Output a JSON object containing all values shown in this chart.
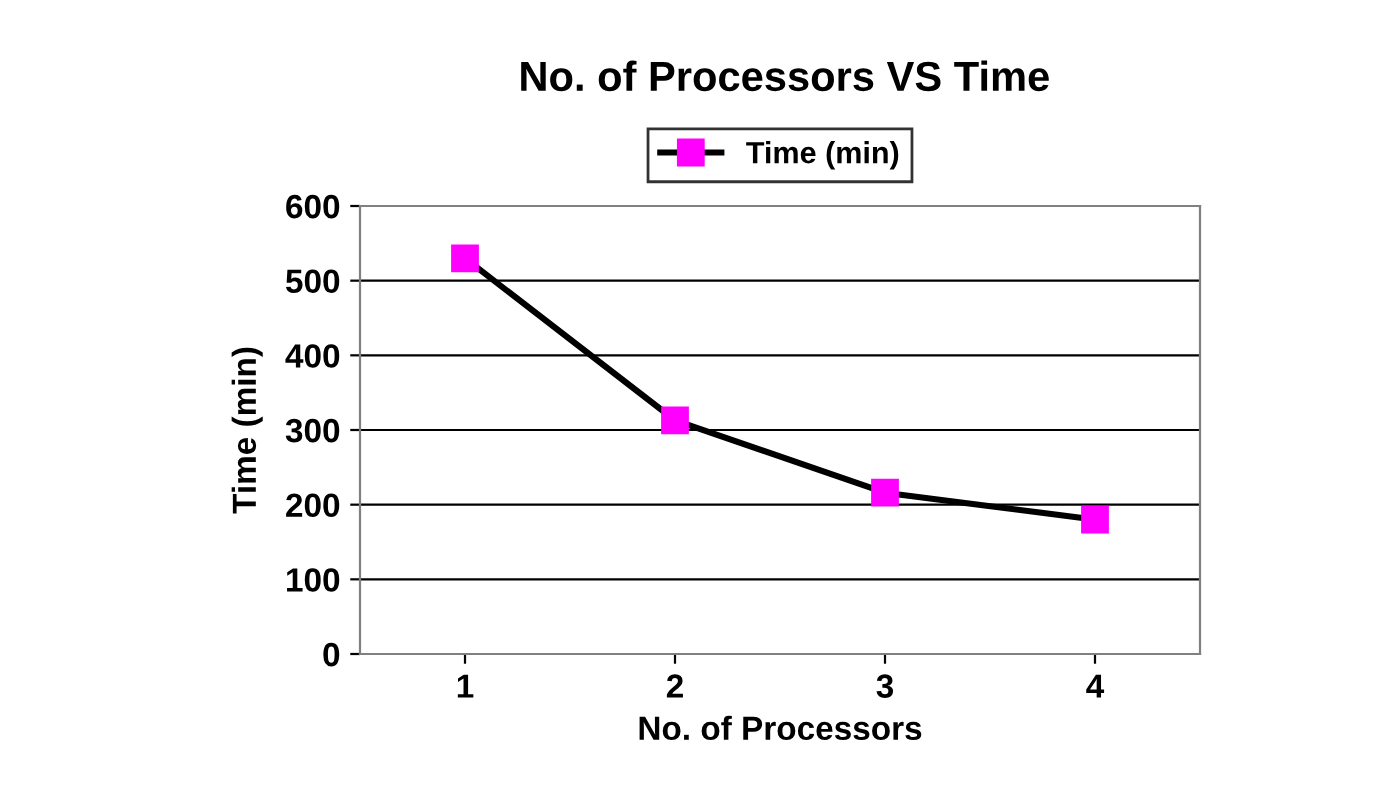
{
  "chart_data": {
    "type": "line",
    "title": "No. of Processors VS Time",
    "xlabel": "No. of Processors",
    "ylabel": "Time (min)",
    "categories": [
      "1",
      "2",
      "3",
      "4"
    ],
    "series": [
      {
        "name": "Time (min)",
        "color": "#000000",
        "colors": [
          "#ff00ff",
          "#ff00ff",
          "#ff00ff",
          "#ff00ff"
        ],
        "values": [
          530,
          313,
          216,
          180
        ]
      }
    ],
    "ylim": [
      0,
      600
    ],
    "yticks": [
      0,
      100,
      200,
      300,
      400,
      500,
      600
    ],
    "grid": "y",
    "legend": "top",
    "marker": "square",
    "line_style": "solid"
  }
}
